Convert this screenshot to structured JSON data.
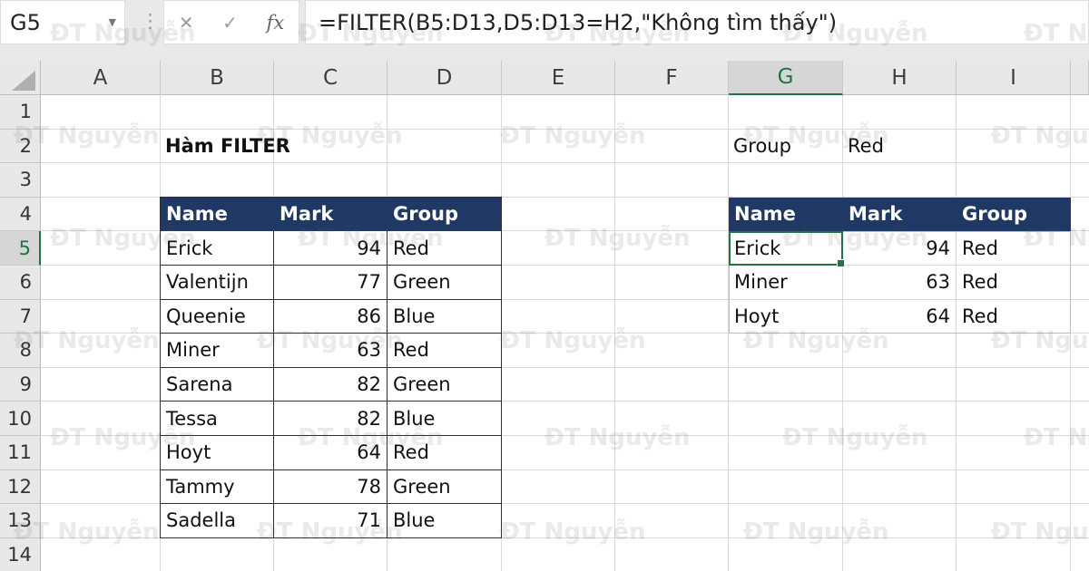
{
  "name_box": {
    "value": "G5",
    "dropdown_icon": "▼"
  },
  "formula_bar": {
    "separator_icon": "⋮",
    "cancel_icon": "✕",
    "enter_icon": "✓",
    "fx_icon": "fx",
    "formula": "=FILTER(B5:D13,D5:D13=H2,\"Không tìm thấy\")"
  },
  "grid": {
    "column_letters": [
      "A",
      "B",
      "C",
      "D",
      "E",
      "F",
      "G",
      "H",
      "I"
    ],
    "row_numbers": [
      1,
      2,
      3,
      4,
      5,
      6,
      7,
      8,
      9,
      10,
      11,
      12,
      13,
      14
    ],
    "selected_cell": "G5",
    "selected_column": "G",
    "selected_row": 5
  },
  "cells": [
    {
      "address": "B2",
      "text": "Hàm FILTER",
      "bold": true
    },
    {
      "address": "G2",
      "text": "Group",
      "bold": false
    },
    {
      "address": "H2",
      "text": "Red",
      "bold": false
    }
  ],
  "source_table": {
    "start_cell": "B4",
    "headers": [
      "Name",
      "Mark",
      "Group"
    ],
    "rows": [
      [
        "Erick",
        "94",
        "Red"
      ],
      [
        "Valentijn",
        "77",
        "Green"
      ],
      [
        "Queenie",
        "86",
        "Blue"
      ],
      [
        "Miner",
        "63",
        "Red"
      ],
      [
        "Sarena",
        "82",
        "Green"
      ],
      [
        "Tessa",
        "82",
        "Blue"
      ],
      [
        "Hoyt",
        "64",
        "Red"
      ],
      [
        "Tammy",
        "78",
        "Green"
      ],
      [
        "Sadella",
        "71",
        "Blue"
      ]
    ]
  },
  "result_table": {
    "start_cell": "G4",
    "headers": [
      "Name",
      "Mark",
      "Group"
    ],
    "rows": [
      [
        "Erick",
        "94",
        "Red"
      ],
      [
        "Miner",
        "63",
        "Red"
      ],
      [
        "Hoyt",
        "64",
        "Red"
      ]
    ]
  },
  "watermark": {
    "text": "ĐT Nguyễn"
  },
  "colors": {
    "table_header_fill": "#1F3864",
    "selection_green": "#217346",
    "spill_border": "#9DC3E6",
    "grid_line": "#D9D9D9",
    "header_bg": "#E8E8E8"
  }
}
